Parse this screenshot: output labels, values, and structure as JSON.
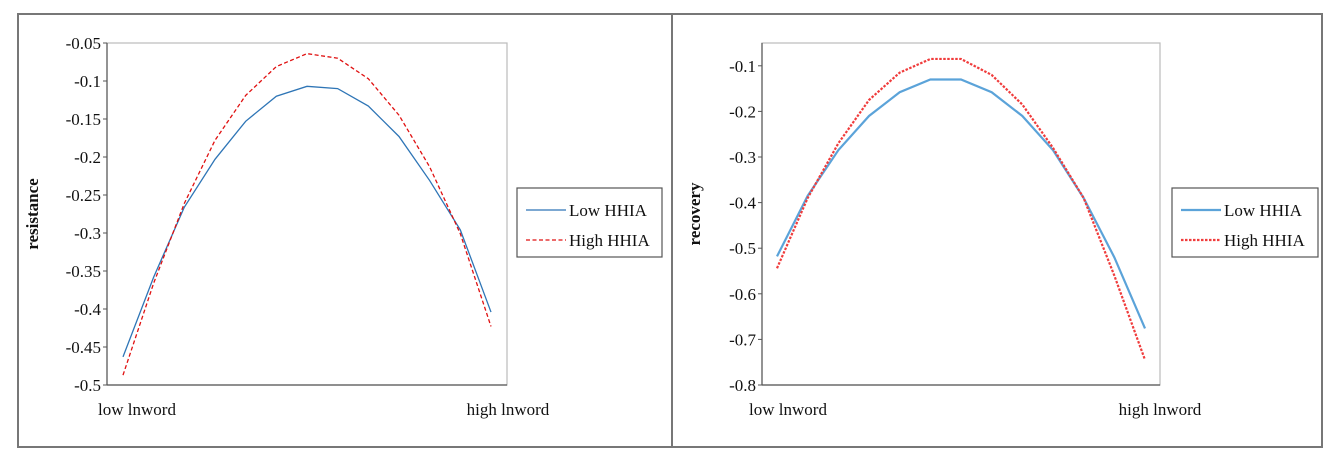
{
  "chart_data": [
    {
      "type": "line",
      "xlabel": "",
      "ylabel": "resistance",
      "x_tick_labels": [
        "low lnword",
        "high lnword"
      ],
      "ylim": [
        -0.5,
        -0.05
      ],
      "yticks": [
        -0.05,
        -0.1,
        -0.15,
        -0.2,
        -0.25,
        -0.3,
        -0.35,
        -0.4,
        -0.45,
        -0.5
      ],
      "ytick_labels": [
        "-0.05",
        "-0.1",
        "-0.15",
        "-0.2",
        "-0.25",
        "-0.3",
        "-0.35",
        "-0.4",
        "-0.45",
        "-0.5"
      ],
      "grid": false,
      "legend_position": "right",
      "series": [
        {
          "name": "Low HHIA",
          "color": "#2e75b6",
          "style": "solid",
          "values": [
            -0.463,
            -0.358,
            -0.266,
            -0.203,
            -0.153,
            -0.12,
            -0.107,
            -0.11,
            -0.133,
            -0.173,
            -0.231,
            -0.296,
            -0.404
          ]
        },
        {
          "name": "High HHIA",
          "color": "#e01010",
          "style": "dashed",
          "values": [
            -0.487,
            -0.366,
            -0.261,
            -0.178,
            -0.119,
            -0.081,
            -0.064,
            -0.07,
            -0.097,
            -0.145,
            -0.213,
            -0.301,
            -0.423
          ]
        }
      ]
    },
    {
      "type": "line",
      "xlabel": "",
      "ylabel": "recovery",
      "x_tick_labels": [
        "low lnword",
        "high lnword"
      ],
      "ylim": [
        -0.8,
        -0.05
      ],
      "yticks": [
        -0.1,
        -0.2,
        -0.3,
        -0.4,
        -0.5,
        -0.6,
        -0.7,
        -0.8
      ],
      "ytick_labels": [
        "-0.1",
        "-0.2",
        "-0.3",
        "-0.4",
        "-0.5",
        "-0.6",
        "-0.7",
        "-0.8"
      ],
      "grid": false,
      "legend_position": "right",
      "series": [
        {
          "name": "Low HHIA",
          "color": "#5ba3d9",
          "style": "solid",
          "values": [
            -0.518,
            -0.385,
            -0.285,
            -0.21,
            -0.158,
            -0.13,
            -0.13,
            -0.158,
            -0.21,
            -0.285,
            -0.39,
            -0.52,
            -0.676
          ]
        },
        {
          "name": "High HHIA",
          "color": "#f03c3c",
          "style": "dotted",
          "values": [
            -0.544,
            -0.39,
            -0.27,
            -0.175,
            -0.115,
            -0.085,
            -0.085,
            -0.12,
            -0.185,
            -0.28,
            -0.39,
            -0.56,
            -0.745
          ]
        }
      ]
    }
  ]
}
